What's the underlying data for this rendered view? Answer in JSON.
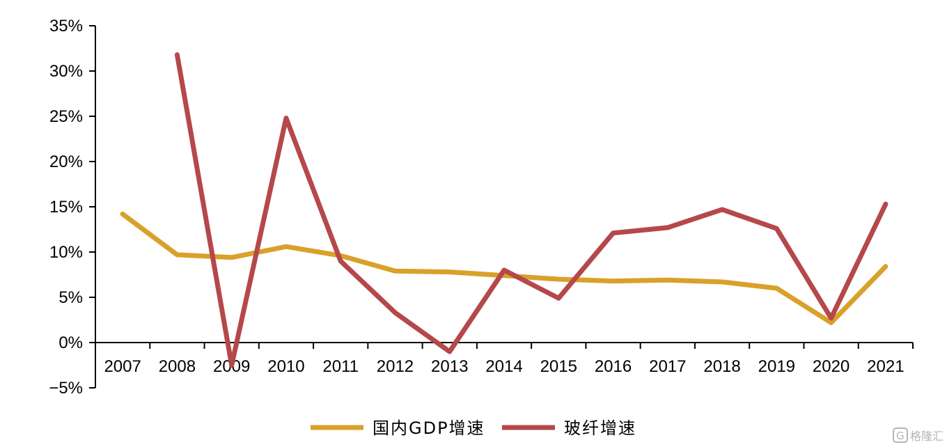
{
  "chart_data": {
    "type": "line",
    "title": "",
    "xlabel": "",
    "ylabel": "",
    "categories": [
      "2007",
      "2008",
      "2009",
      "2010",
      "2011",
      "2012",
      "2013",
      "2014",
      "2015",
      "2016",
      "2017",
      "2018",
      "2019",
      "2020",
      "2021"
    ],
    "ylim": [
      -5,
      35
    ],
    "yticks": [
      -5,
      0,
      5,
      10,
      15,
      20,
      25,
      30,
      35
    ],
    "ytick_labels": [
      "−5%",
      "0%",
      "5%",
      "10%",
      "15%",
      "20%",
      "25%",
      "30%",
      "35%"
    ],
    "grid": false,
    "legend_position": "bottom-center",
    "series": [
      {
        "name": "国内GDP增速",
        "color": "#D9A12A",
        "values": [
          14.2,
          9.7,
          9.4,
          10.6,
          9.6,
          7.9,
          7.8,
          7.4,
          7.0,
          6.8,
          6.9,
          6.7,
          6.0,
          2.2,
          8.4
        ]
      },
      {
        "name": "玻纤增速",
        "color": "#B5484A",
        "values": [
          null,
          31.8,
          -2.5,
          24.8,
          9.0,
          3.3,
          -1.0,
          8.0,
          4.9,
          12.1,
          12.7,
          14.7,
          12.6,
          2.7,
          15.3
        ]
      }
    ]
  },
  "watermark": {
    "icon": "g-logo-icon",
    "text": "格隆汇"
  }
}
